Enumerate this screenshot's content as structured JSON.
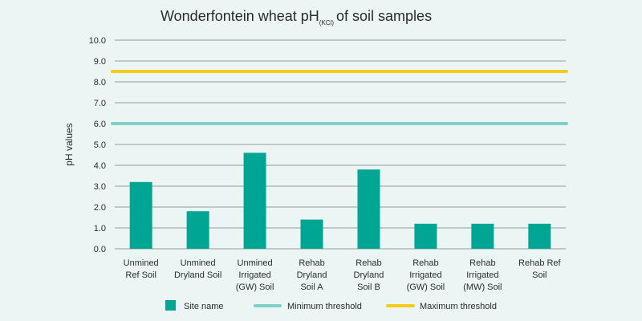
{
  "chart_data": {
    "type": "bar",
    "title": {
      "pre": "Wonderfontein wheat pH",
      "sub": "(KCl)",
      "post": "of soil samples"
    },
    "ylabel": "pH values",
    "xlabel": "",
    "ylim": [
      0,
      10
    ],
    "yticks": [
      "0.0",
      "1.0",
      "2.0",
      "3.0",
      "4.0",
      "5.0",
      "6.0",
      "7.0",
      "8.0",
      "9.0",
      "10.0"
    ],
    "grid": true,
    "categories": [
      [
        "Unmined",
        "Ref Soil"
      ],
      [
        "Unmined",
        "Dryland Soil"
      ],
      [
        "Unmined",
        "Irrigated",
        "(GW) Soil"
      ],
      [
        "Rehab",
        "Dryland",
        "Soil A"
      ],
      [
        "Rehab",
        "Dryland",
        "Soil B"
      ],
      [
        "Rehab",
        "Irrigated",
        "(GW) Soil"
      ],
      [
        "Rehab",
        "Irrigated",
        "(MW) Soil"
      ],
      [
        "Rehab Ref",
        "Soil"
      ]
    ],
    "series": [
      {
        "name": "Site name",
        "values": [
          3.2,
          1.8,
          4.6,
          1.4,
          3.8,
          1.2,
          1.2,
          1.2
        ],
        "color": "#00a693"
      }
    ],
    "thresholds": [
      {
        "name": "Minimum threshold",
        "value": 6.0,
        "color": "#7fd0c8"
      },
      {
        "name": "Maximum threshold",
        "value": 8.5,
        "color": "#f5cb1c"
      }
    ],
    "legend_position": "bottom"
  },
  "colors": {
    "background": "#ebf6f4",
    "grid": "#9a9a9a",
    "text": "#2b2b2b"
  }
}
